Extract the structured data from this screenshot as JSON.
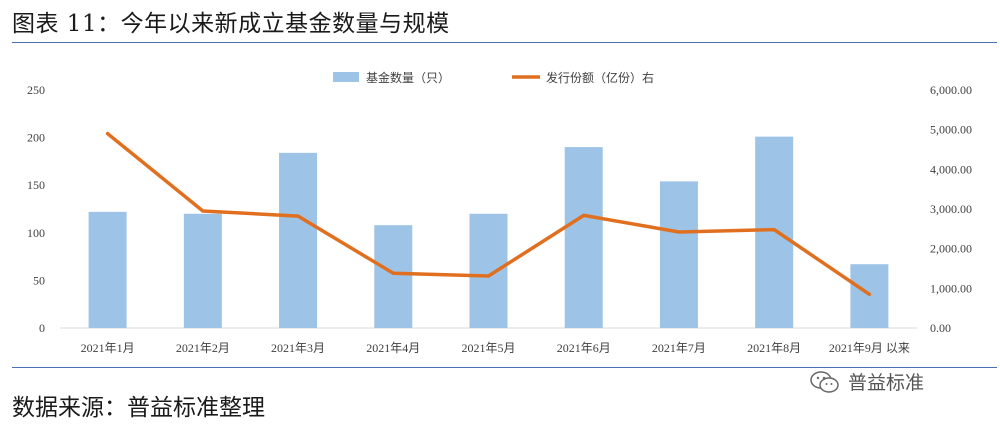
{
  "figure": {
    "title": "图表 11：今年以来新成立基金数量与规模",
    "source": "数据来源：普益标准整理",
    "watermark": "普益标准"
  },
  "colors": {
    "bar": "#9dc3e6",
    "line": "#e07020",
    "rule": "#4a6fb5",
    "axis": "#d9d9d9",
    "text": "#404040"
  },
  "chart_data": {
    "type": "bar",
    "categories": [
      "2021年1月",
      "2021年2月",
      "2021年3月",
      "2021年4月",
      "2021年5月",
      "2021年6月",
      "2021年7月",
      "2021年8月",
      "2021年9月 以来"
    ],
    "series": [
      {
        "name": "基金数量（只）",
        "type": "bar",
        "axis": "left",
        "values": [
          122,
          120,
          184,
          108,
          120,
          190,
          154,
          201,
          67
        ]
      },
      {
        "name": "发行份额（亿份）右",
        "type": "line",
        "axis": "right",
        "values": [
          4900,
          2950,
          2820,
          1380,
          1310,
          2840,
          2420,
          2480,
          850
        ]
      }
    ],
    "y_left": {
      "lim": [
        0,
        250
      ],
      "ticks": [
        "0",
        "50",
        "100",
        "150",
        "200",
        "250"
      ]
    },
    "y_right": {
      "lim": [
        0,
        6000
      ],
      "ticks": [
        "0.00",
        "1,000.00",
        "2,000.00",
        "3,000.00",
        "4,000.00",
        "5,000.00",
        "6,000.00"
      ]
    },
    "grid": false,
    "legend": "top-center"
  }
}
